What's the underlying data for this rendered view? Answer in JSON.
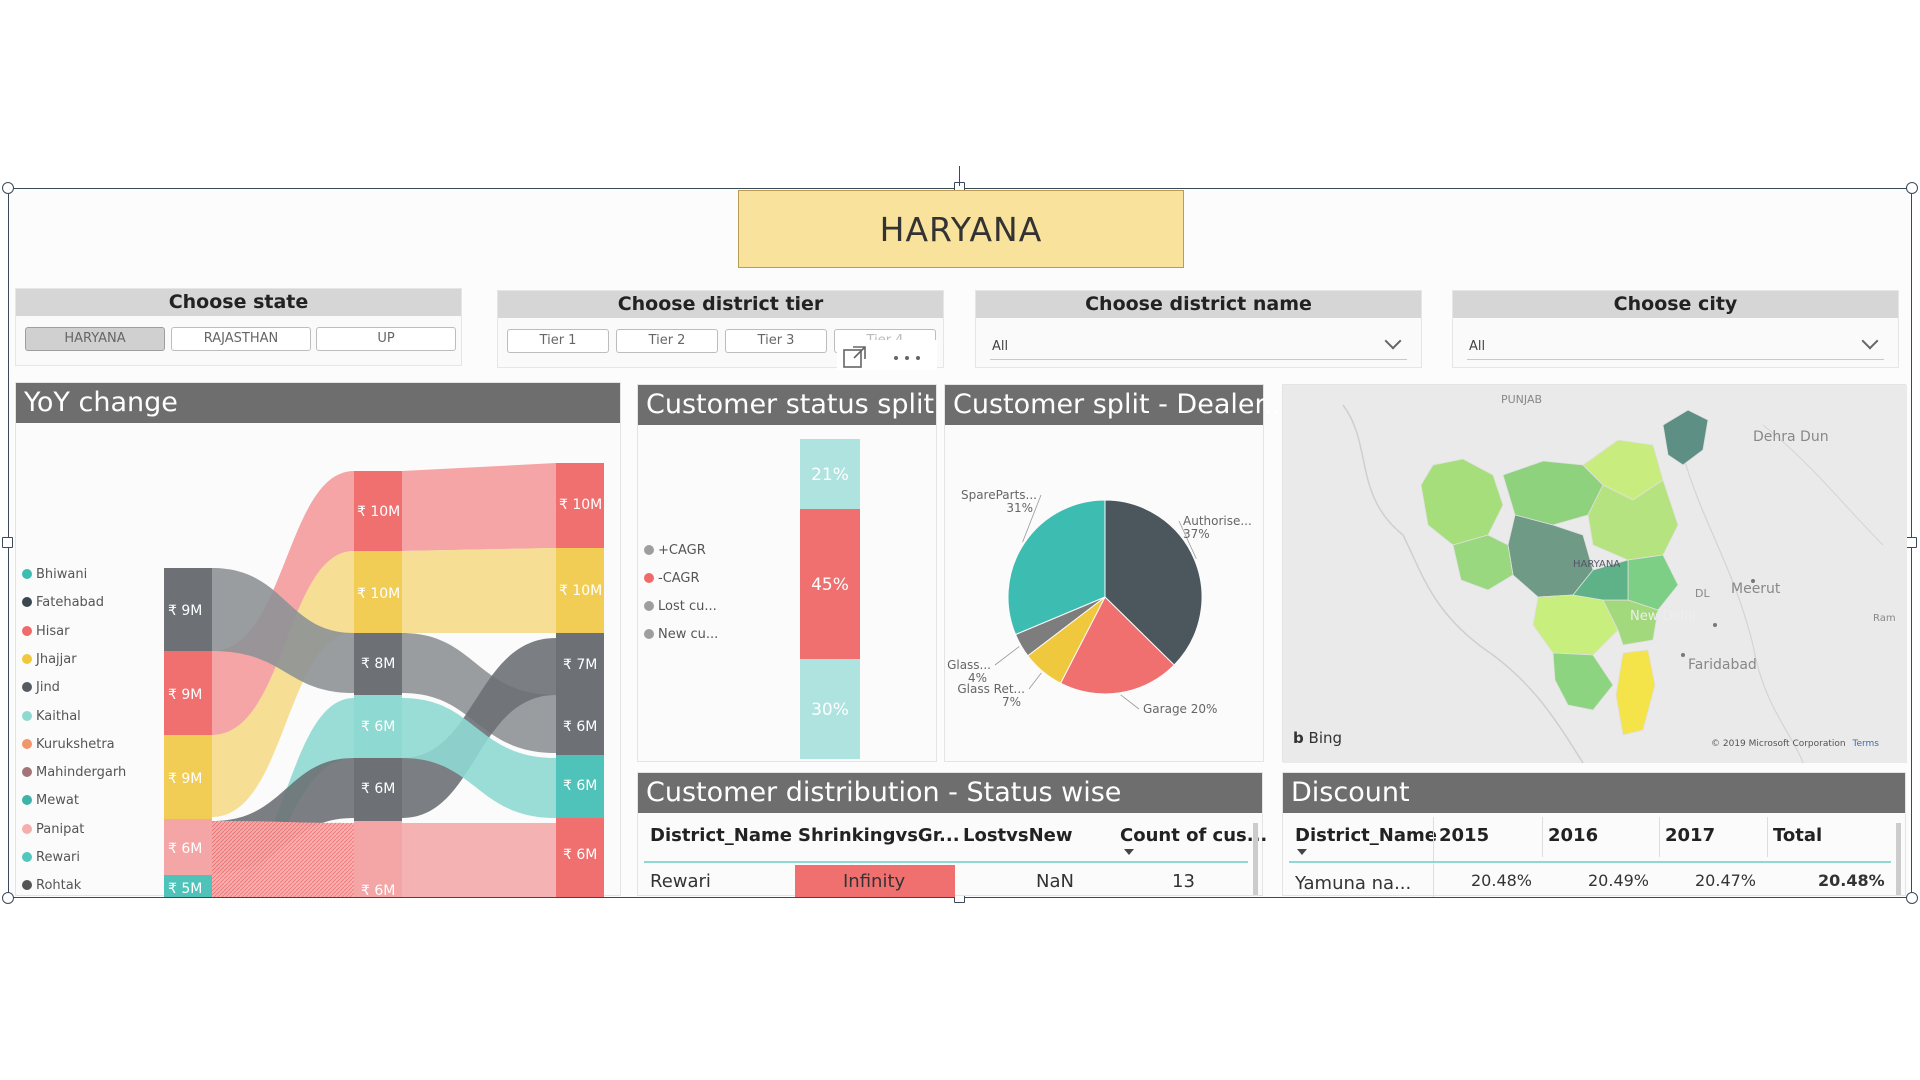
{
  "banner": {
    "title": "HARYANA"
  },
  "state_slicer": {
    "header": "Choose state",
    "options": [
      "HARYANA",
      "RAJASTHAN",
      "UP"
    ],
    "selected": "HARYANA"
  },
  "tier_slicer": {
    "header": "Choose district tier",
    "options": [
      "Tier 1",
      "Tier 2",
      "Tier 3",
      "Tier 4"
    ]
  },
  "district_slicer": {
    "header": "Choose district name",
    "value": "All"
  },
  "city_slicer": {
    "header": "Choose city",
    "value": "All"
  },
  "yoy": {
    "title": "YoY change",
    "legend": [
      {
        "name": "Bhiwani",
        "color": "#3dbdb1"
      },
      {
        "name": "Fatehabad",
        "color": "#3b474f"
      },
      {
        "name": "Hisar",
        "color": "#ef6a6a"
      },
      {
        "name": "Jhajjar",
        "color": "#f0c83e"
      },
      {
        "name": "Jind",
        "color": "#555b60"
      },
      {
        "name": "Kaithal",
        "color": "#8fd9d3"
      },
      {
        "name": "Kurukshetra",
        "color": "#f2956b"
      },
      {
        "name": "Mahindergarh",
        "color": "#a27478"
      },
      {
        "name": "Mewat",
        "color": "#3fb3a9"
      },
      {
        "name": "Panipat",
        "color": "#f4aeae"
      },
      {
        "name": "Rewari",
        "color": "#52c7bd"
      },
      {
        "name": "Rohtak",
        "color": "#555555"
      }
    ],
    "col1": [
      "₹ 9M",
      "₹ 9M",
      "₹ 9M",
      "₹ 6M",
      "₹ 5M"
    ],
    "col2": [
      "₹ 10M",
      "₹ 10M",
      "₹ 8M",
      "₹ 6M",
      "₹ 6M",
      "₹ 6M"
    ],
    "col3": [
      "₹ 10M",
      "₹ 10M",
      "₹ 7M",
      "₹ 6M",
      "₹ 6M",
      "₹ 6M"
    ]
  },
  "status_split": {
    "title": "Customer status split",
    "legend": [
      {
        "name": "+CAGR",
        "color": "#9e9e9e"
      },
      {
        "name": "-CAGR",
        "color": "#ef6a6a"
      },
      {
        "name": "Lost cu...",
        "color": "#9e9e9e"
      },
      {
        "name": "New cu...",
        "color": "#9e9e9e"
      }
    ],
    "segments": [
      {
        "label": "21%",
        "value": 21,
        "color": "#aee3e0"
      },
      {
        "label": "45%",
        "value": 45,
        "color": "#f07070"
      },
      {
        "label": "30%",
        "value": 30,
        "color": "#aee3e0"
      }
    ]
  },
  "dealer_split": {
    "title": "Customer split - Dealer...",
    "slices": [
      {
        "name": "Authorise...",
        "label": "Authorise...",
        "pct_label": "37%",
        "value": 37,
        "color": "#4b565d"
      },
      {
        "name": "Garage",
        "label": "Garage 20%",
        "pct_label": "",
        "value": 20,
        "color": "#f07070"
      },
      {
        "name": "Glass Ret...",
        "label": "Glass Ret...",
        "pct_label": "7%",
        "value": 7,
        "color": "#f0c83e"
      },
      {
        "name": "Glass...",
        "label": "Glass...",
        "pct_label": "4%",
        "value": 4,
        "color": "#7d7d7d"
      },
      {
        "name": "SpareParts...",
        "label": "SpareParts...",
        "pct_label": "31%",
        "value": 31,
        "color": "#3dbdb1"
      }
    ]
  },
  "map": {
    "labels": [
      "PUNJAB",
      "Dehra Dun",
      "Meerut",
      "New Delhi",
      "Faridabad",
      "HARYANA",
      "DL",
      "Ram"
    ],
    "logo": "Bing",
    "copyright": "© 2019 Microsoft Corporation",
    "terms": "Terms"
  },
  "distribution": {
    "title": "Customer distribution - Status wise",
    "columns": [
      "District_Name",
      "ShrinkingvsGr...",
      "LostvsNew",
      "Count of cus..."
    ],
    "row": [
      "Rewari",
      "Infinity",
      "NaN",
      "13"
    ]
  },
  "discount": {
    "title": "Discount",
    "columns": [
      "District_Name",
      "2015",
      "2016",
      "2017",
      "Total"
    ],
    "row": [
      "Yamuna na...",
      "20.48%",
      "20.49%",
      "20.47%",
      "20.48%"
    ]
  }
}
